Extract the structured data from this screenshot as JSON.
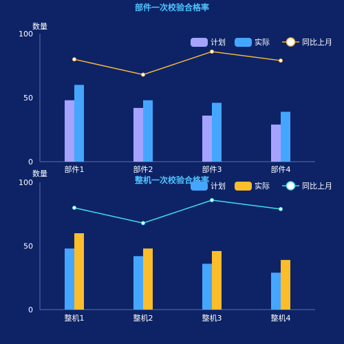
{
  "colors": {
    "background": "#0d2366",
    "title": "#4fc3ff",
    "axis_text": "#ffffff",
    "axis_line": "#5b6fa8"
  },
  "chart_data": [
    {
      "type": "bar",
      "title": "部件一次校验合格率",
      "ylabel": "数量",
      "xlabel": "",
      "ylim": [
        0,
        100
      ],
      "yticks": [
        0,
        50,
        100
      ],
      "grid": false,
      "legend_position": "top-right",
      "categories": [
        "部件1",
        "部件2",
        "部件3",
        "部件4"
      ],
      "series": [
        {
          "name": "计划",
          "type": "bar",
          "color": "#a6a3ff",
          "values": [
            48,
            42,
            36,
            29
          ]
        },
        {
          "name": "实际",
          "type": "bar",
          "color": "#45a6ff",
          "values": [
            60,
            48,
            46,
            39
          ]
        },
        {
          "name": "同比上月",
          "type": "line",
          "color": "#f5b63c",
          "values": [
            80,
            68,
            86,
            79
          ]
        }
      ]
    },
    {
      "type": "bar",
      "title": "整机一次校验合格率",
      "ylabel": "数量",
      "xlabel": "",
      "ylim": [
        0,
        100
      ],
      "yticks": [
        0,
        50,
        100
      ],
      "grid": false,
      "legend_position": "top-right",
      "categories": [
        "整机1",
        "整机2",
        "整机3",
        "整机4"
      ],
      "series": [
        {
          "name": "计划",
          "type": "bar",
          "color": "#45a6ff",
          "values": [
            48,
            42,
            36,
            29
          ]
        },
        {
          "name": "实际",
          "type": "bar",
          "color": "#fbbd2a",
          "values": [
            60,
            48,
            46,
            39
          ]
        },
        {
          "name": "同比上月",
          "type": "line",
          "color": "#3ee0ee",
          "values": [
            80,
            68,
            86,
            79
          ]
        }
      ]
    }
  ]
}
